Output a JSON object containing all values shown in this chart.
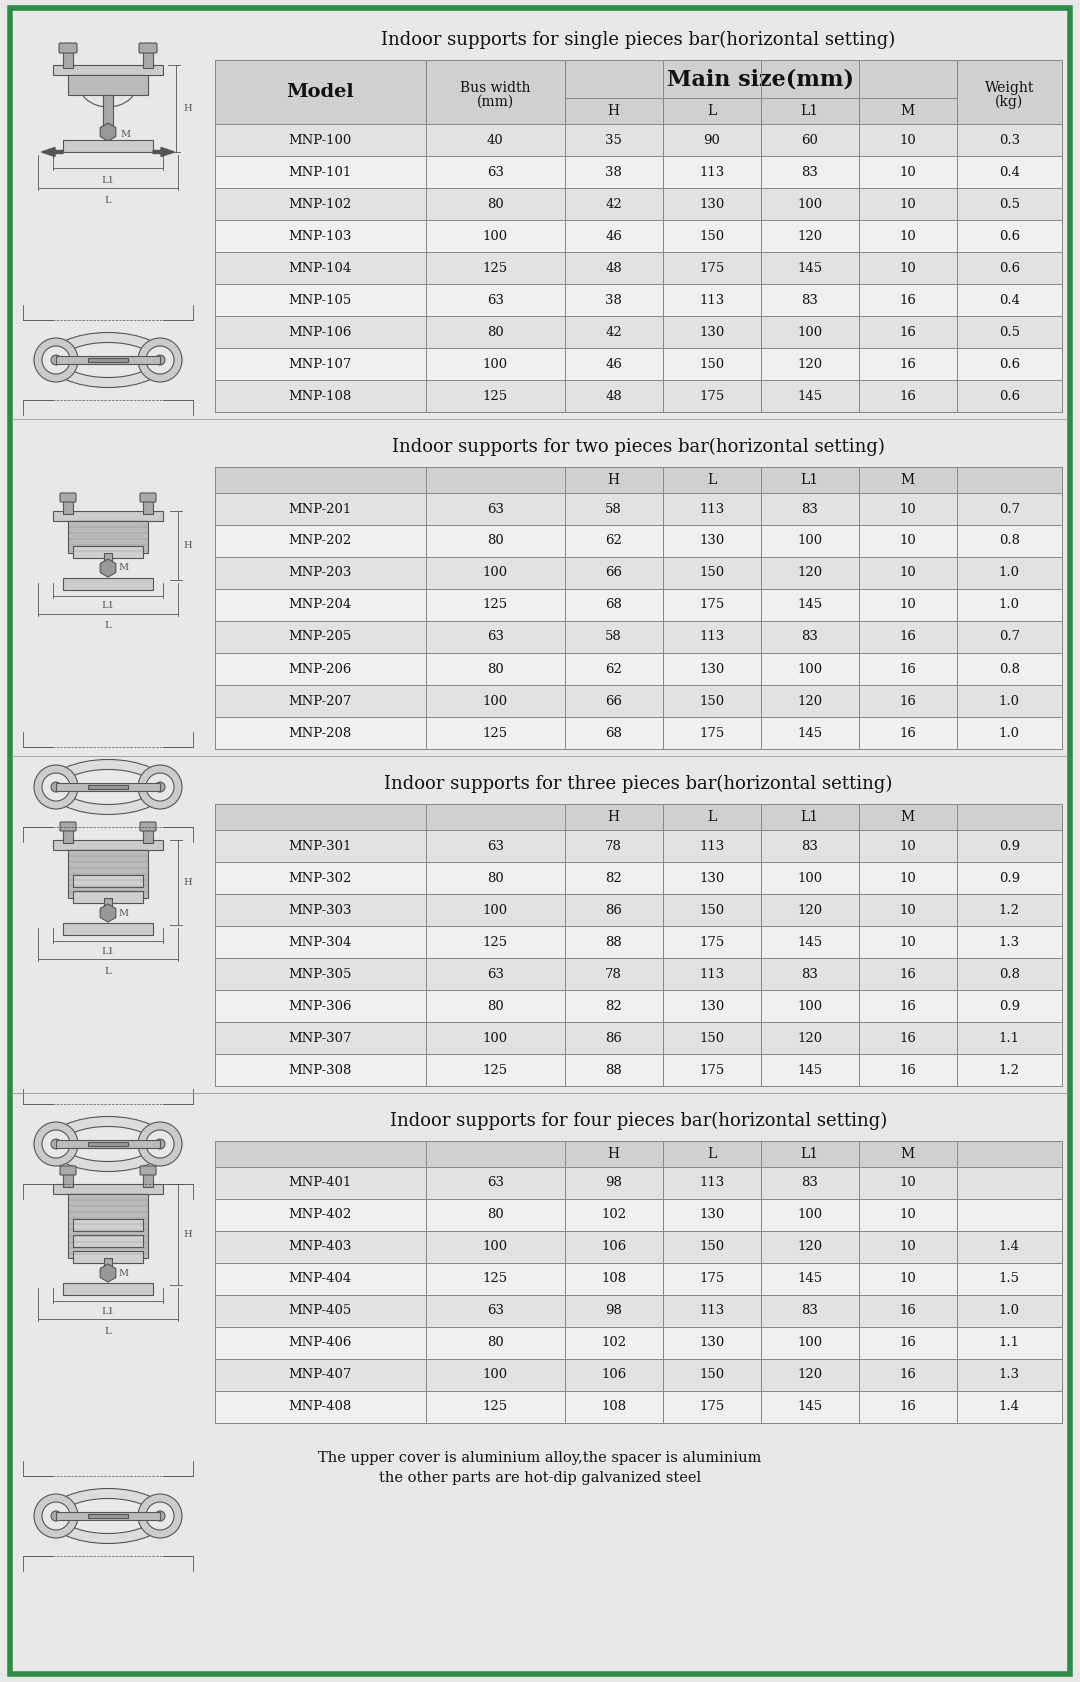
{
  "bg_color": "#e8e8e8",
  "border_color": "#2e8b47",
  "title1": "Indoor supports for single pieces bar(horizontal setting)",
  "title2": "Indoor supports for two pieces bar(horizontal setting)",
  "title3": "Indoor supports for three pieces bar(horizontal setting)",
  "title4": "Indoor supports for four pieces bar(horizontal setting)",
  "footer": "The upper cover is aluminium alloy,the spacer is aluminium\nthe other parts are hot-dip galvanized steel",
  "table1_data": [
    [
      "MNP-100",
      "40",
      "35",
      "90",
      "60",
      "10",
      "0.3"
    ],
    [
      "MNP-101",
      "63",
      "38",
      "113",
      "83",
      "10",
      "0.4"
    ],
    [
      "MNP-102",
      "80",
      "42",
      "130",
      "100",
      "10",
      "0.5"
    ],
    [
      "MNP-103",
      "100",
      "46",
      "150",
      "120",
      "10",
      "0.6"
    ],
    [
      "MNP-104",
      "125",
      "48",
      "175",
      "145",
      "10",
      "0.6"
    ],
    [
      "MNP-105",
      "63",
      "38",
      "113",
      "83",
      "16",
      "0.4"
    ],
    [
      "MNP-106",
      "80",
      "42",
      "130",
      "100",
      "16",
      "0.5"
    ],
    [
      "MNP-107",
      "100",
      "46",
      "150",
      "120",
      "16",
      "0.6"
    ],
    [
      "MNP-108",
      "125",
      "48",
      "175",
      "145",
      "16",
      "0.6"
    ]
  ],
  "table2_data": [
    [
      "MNP-201",
      "63",
      "58",
      "113",
      "83",
      "10",
      "0.7"
    ],
    [
      "MNP-202",
      "80",
      "62",
      "130",
      "100",
      "10",
      "0.8"
    ],
    [
      "MNP-203",
      "100",
      "66",
      "150",
      "120",
      "10",
      "1.0"
    ],
    [
      "MNP-204",
      "125",
      "68",
      "175",
      "145",
      "10",
      "1.0"
    ],
    [
      "MNP-205",
      "63",
      "58",
      "113",
      "83",
      "16",
      "0.7"
    ],
    [
      "MNP-206",
      "80",
      "62",
      "130",
      "100",
      "16",
      "0.8"
    ],
    [
      "MNP-207",
      "100",
      "66",
      "150",
      "120",
      "16",
      "1.0"
    ],
    [
      "MNP-208",
      "125",
      "68",
      "175",
      "145",
      "16",
      "1.0"
    ]
  ],
  "table3_data": [
    [
      "MNP-301",
      "63",
      "78",
      "113",
      "83",
      "10",
      "0.9"
    ],
    [
      "MNP-302",
      "80",
      "82",
      "130",
      "100",
      "10",
      "0.9"
    ],
    [
      "MNP-303",
      "100",
      "86",
      "150",
      "120",
      "10",
      "1.2"
    ],
    [
      "MNP-304",
      "125",
      "88",
      "175",
      "145",
      "10",
      "1.3"
    ],
    [
      "MNP-305",
      "63",
      "78",
      "113",
      "83",
      "16",
      "0.8"
    ],
    [
      "MNP-306",
      "80",
      "82",
      "130",
      "100",
      "16",
      "0.9"
    ],
    [
      "MNP-307",
      "100",
      "86",
      "150",
      "120",
      "16",
      "1.1"
    ],
    [
      "MNP-308",
      "125",
      "88",
      "175",
      "145",
      "16",
      "1.2"
    ]
  ],
  "table4_data": [
    [
      "MNP-401",
      "63",
      "98",
      "113",
      "83",
      "10",
      ""
    ],
    [
      "MNP-402",
      "80",
      "102",
      "130",
      "100",
      "10",
      ""
    ],
    [
      "MNP-403",
      "100",
      "106",
      "150",
      "120",
      "10",
      "1.4"
    ],
    [
      "MNP-404",
      "125",
      "108",
      "175",
      "145",
      "10",
      "1.5"
    ],
    [
      "MNP-405",
      "63",
      "98",
      "113",
      "83",
      "16",
      "1.0"
    ],
    [
      "MNP-406",
      "80",
      "102",
      "130",
      "100",
      "16",
      "1.1"
    ],
    [
      "MNP-407",
      "100",
      "106",
      "150",
      "120",
      "16",
      "1.3"
    ],
    [
      "MNP-408",
      "125",
      "108",
      "175",
      "145",
      "16",
      "1.4"
    ]
  ],
  "cell_bg_even": "#e2e2e2",
  "cell_bg_odd": "#f0f0f0",
  "header_bg": "#d0d0d0",
  "line_color": "#888888",
  "text_color": "#111111",
  "draw_color": "#555555"
}
